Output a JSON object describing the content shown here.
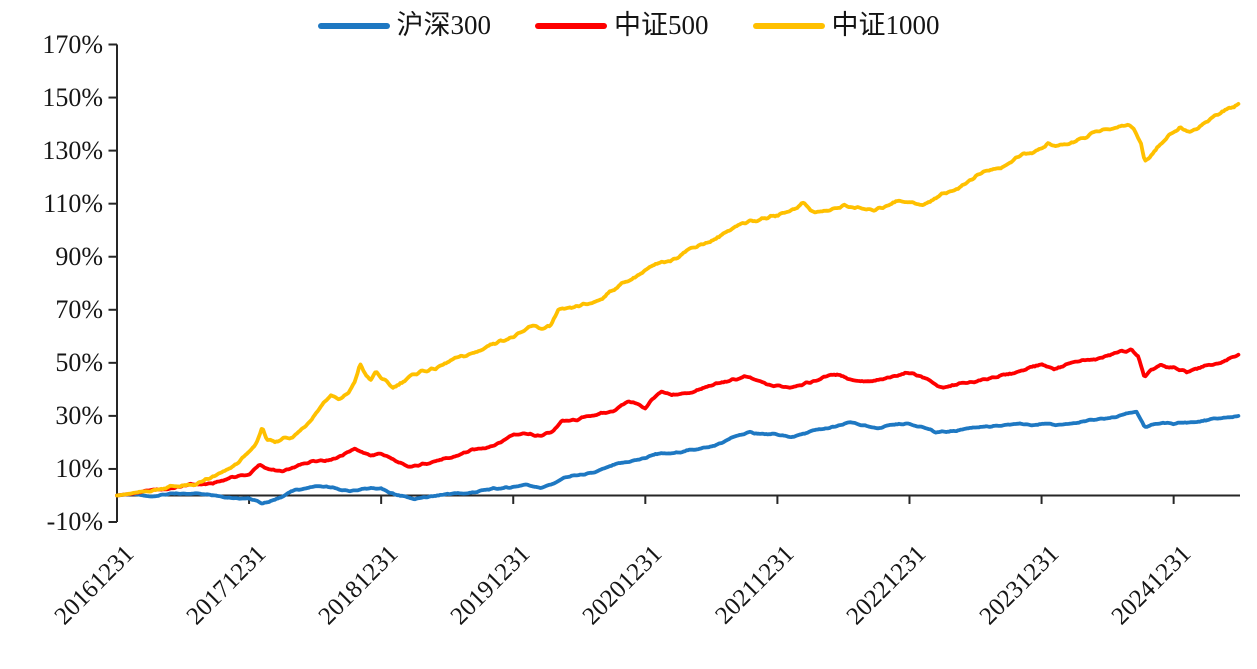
{
  "chart_data": {
    "type": "line",
    "title": "",
    "xlabel": "",
    "ylabel": "",
    "grid": false,
    "legend_position": "top-center",
    "axis_color": "#262626",
    "text_color": "#161616",
    "background": "#ffffff",
    "ylim": [
      -10,
      170
    ],
    "y_tick_labels": [
      "170%",
      "150%",
      "130%",
      "110%",
      "90%",
      "70%",
      "50%",
      "30%",
      "10%",
      "-10%"
    ],
    "y_tick_values": [
      170,
      150,
      130,
      110,
      90,
      70,
      50,
      30,
      10,
      -10
    ],
    "x_tick_labels": [
      "20161231",
      "20171231",
      "20181231",
      "20191231",
      "20201231",
      "20211231",
      "20221231",
      "20231231",
      "20241231"
    ],
    "x_tick_years": [
      0,
      1,
      2,
      3,
      4,
      5,
      6,
      7,
      8
    ],
    "x_range_years": [
      0,
      8.54
    ],
    "value_unit": "percent_cumulative_return",
    "legend": [
      {
        "name": "沪深300",
        "color": "#1E78C2"
      },
      {
        "name": "中证500",
        "color": "#FE0000"
      },
      {
        "name": "中证1000",
        "color": "#FFC000"
      }
    ],
    "series": [
      {
        "name": "沪深300",
        "color": "#1E78C2",
        "points": [
          [
            0,
            0
          ],
          [
            0.12,
            0.6
          ],
          [
            0.25,
            -0.3
          ],
          [
            0.4,
            0.4
          ],
          [
            0.55,
            1.0
          ],
          [
            0.7,
            0.3
          ],
          [
            0.85,
            -0.6
          ],
          [
            1.0,
            -1.4
          ],
          [
            1.1,
            -2.8
          ],
          [
            1.22,
            -1.2
          ],
          [
            1.35,
            2.0
          ],
          [
            1.5,
            3.6
          ],
          [
            1.62,
            2.8
          ],
          [
            1.75,
            1.8
          ],
          [
            1.88,
            2.4
          ],
          [
            2.0,
            2.6
          ],
          [
            2.1,
            0.6
          ],
          [
            2.25,
            -1.5
          ],
          [
            2.35,
            -0.4
          ],
          [
            2.5,
            0.4
          ],
          [
            2.65,
            1.0
          ],
          [
            2.8,
            2.0
          ],
          [
            3.0,
            3.4
          ],
          [
            3.1,
            4.0
          ],
          [
            3.2,
            2.8
          ],
          [
            3.3,
            4.5
          ],
          [
            3.38,
            6.5
          ],
          [
            3.5,
            7.7
          ],
          [
            3.6,
            8.6
          ],
          [
            3.7,
            10.2
          ],
          [
            3.8,
            12.0
          ],
          [
            3.9,
            13.2
          ],
          [
            4.0,
            14.0
          ],
          [
            4.08,
            15.6
          ],
          [
            4.2,
            16.0
          ],
          [
            4.35,
            17.0
          ],
          [
            4.5,
            18.6
          ],
          [
            4.6,
            20.2
          ],
          [
            4.7,
            22.6
          ],
          [
            4.8,
            24.0
          ],
          [
            4.9,
            23.0
          ],
          [
            5.0,
            22.8
          ],
          [
            5.1,
            22.2
          ],
          [
            5.2,
            23.2
          ],
          [
            5.3,
            24.6
          ],
          [
            5.45,
            26.2
          ],
          [
            5.55,
            27.4
          ],
          [
            5.65,
            26.4
          ],
          [
            5.75,
            25.4
          ],
          [
            5.85,
            26.4
          ],
          [
            6.0,
            27.2
          ],
          [
            6.1,
            25.8
          ],
          [
            6.2,
            23.6
          ],
          [
            6.35,
            24.6
          ],
          [
            6.5,
            25.6
          ],
          [
            6.65,
            26.2
          ],
          [
            6.8,
            26.8
          ],
          [
            7.0,
            27.0
          ],
          [
            7.1,
            26.4
          ],
          [
            7.25,
            27.4
          ],
          [
            7.4,
            28.4
          ],
          [
            7.55,
            29.6
          ],
          [
            7.65,
            31.0
          ],
          [
            7.72,
            31.4
          ],
          [
            7.78,
            25.6
          ],
          [
            7.85,
            27.0
          ],
          [
            7.95,
            27.4
          ],
          [
            8.0,
            26.8
          ],
          [
            8.1,
            27.6
          ],
          [
            8.2,
            28.0
          ],
          [
            8.35,
            29.0
          ],
          [
            8.49,
            30.2
          ]
        ]
      },
      {
        "name": "中证500",
        "color": "#FE0000",
        "points": [
          [
            0,
            0
          ],
          [
            0.12,
            0.8
          ],
          [
            0.25,
            1.8
          ],
          [
            0.4,
            2.8
          ],
          [
            0.55,
            3.8
          ],
          [
            0.7,
            4.6
          ],
          [
            0.8,
            5.6
          ],
          [
            0.9,
            7.0
          ],
          [
            1.0,
            8.2
          ],
          [
            1.08,
            11.6
          ],
          [
            1.16,
            9.4
          ],
          [
            1.25,
            9.0
          ],
          [
            1.35,
            11.0
          ],
          [
            1.5,
            13.0
          ],
          [
            1.6,
            13.6
          ],
          [
            1.7,
            15.0
          ],
          [
            1.8,
            17.6
          ],
          [
            1.86,
            16.0
          ],
          [
            1.94,
            15.4
          ],
          [
            2.0,
            15.9
          ],
          [
            2.1,
            13.0
          ],
          [
            2.2,
            10.9
          ],
          [
            2.3,
            11.6
          ],
          [
            2.4,
            12.6
          ],
          [
            2.5,
            14.0
          ],
          [
            2.6,
            15.6
          ],
          [
            2.75,
            17.6
          ],
          [
            2.9,
            20.0
          ],
          [
            3.0,
            22.8
          ],
          [
            3.1,
            23.6
          ],
          [
            3.2,
            22.4
          ],
          [
            3.3,
            24.0
          ],
          [
            3.37,
            28.0
          ],
          [
            3.45,
            28.5
          ],
          [
            3.55,
            29.5
          ],
          [
            3.65,
            30.5
          ],
          [
            3.75,
            32.0
          ],
          [
            3.87,
            35.4
          ],
          [
            3.95,
            34.0
          ],
          [
            4.0,
            33.0
          ],
          [
            4.06,
            37.0
          ],
          [
            4.12,
            39.0
          ],
          [
            4.2,
            37.5
          ],
          [
            4.3,
            38.5
          ],
          [
            4.45,
            40.6
          ],
          [
            4.55,
            42.0
          ],
          [
            4.65,
            43.6
          ],
          [
            4.75,
            44.8
          ],
          [
            4.85,
            43.0
          ],
          [
            4.95,
            41.6
          ],
          [
            5.0,
            41.6
          ],
          [
            5.1,
            40.6
          ],
          [
            5.2,
            42.0
          ],
          [
            5.35,
            44.6
          ],
          [
            5.45,
            45.6
          ],
          [
            5.55,
            44.0
          ],
          [
            5.7,
            42.6
          ],
          [
            5.8,
            43.6
          ],
          [
            5.9,
            45.6
          ],
          [
            6.0,
            46.2
          ],
          [
            6.08,
            44.8
          ],
          [
            6.16,
            43.4
          ],
          [
            6.25,
            40.4
          ],
          [
            6.35,
            41.6
          ],
          [
            6.45,
            42.6
          ],
          [
            6.55,
            43.6
          ],
          [
            6.7,
            45.0
          ],
          [
            6.8,
            46.6
          ],
          [
            6.9,
            48.0
          ],
          [
            7.0,
            49.2
          ],
          [
            7.1,
            48.0
          ],
          [
            7.2,
            49.6
          ],
          [
            7.35,
            51.0
          ],
          [
            7.5,
            52.6
          ],
          [
            7.6,
            54.0
          ],
          [
            7.68,
            54.9
          ],
          [
            7.73,
            53.0
          ],
          [
            7.78,
            44.4
          ],
          [
            7.83,
            47.0
          ],
          [
            7.9,
            49.0
          ],
          [
            7.95,
            48.0
          ],
          [
            8.0,
            48.5
          ],
          [
            8.1,
            46.6
          ],
          [
            8.2,
            48.0
          ],
          [
            8.3,
            49.6
          ],
          [
            8.4,
            51.0
          ],
          [
            8.49,
            52.6
          ]
        ]
      },
      {
        "name": "中证1000",
        "color": "#FFC000",
        "points": [
          [
            0,
            0
          ],
          [
            0.1,
            0.6
          ],
          [
            0.2,
            1.4
          ],
          [
            0.3,
            2.4
          ],
          [
            0.4,
            3.0
          ],
          [
            0.5,
            3.6
          ],
          [
            0.6,
            4.6
          ],
          [
            0.7,
            6.0
          ],
          [
            0.8,
            8.6
          ],
          [
            0.9,
            12.0
          ],
          [
            1.0,
            16.0
          ],
          [
            1.05,
            19.0
          ],
          [
            1.1,
            25.3
          ],
          [
            1.14,
            21.0
          ],
          [
            1.2,
            20.2
          ],
          [
            1.27,
            22.0
          ],
          [
            1.33,
            21.4
          ],
          [
            1.42,
            26.0
          ],
          [
            1.5,
            31.0
          ],
          [
            1.56,
            34.8
          ],
          [
            1.62,
            37.5
          ],
          [
            1.68,
            36.0
          ],
          [
            1.75,
            38.5
          ],
          [
            1.8,
            43.0
          ],
          [
            1.84,
            49.8
          ],
          [
            1.88,
            45.8
          ],
          [
            1.92,
            42.9
          ],
          [
            1.96,
            46.4
          ],
          [
            2.0,
            44.2
          ],
          [
            2.09,
            41.0
          ],
          [
            2.2,
            44.0
          ],
          [
            2.3,
            46.6
          ],
          [
            2.4,
            48.0
          ],
          [
            2.5,
            50.0
          ],
          [
            2.6,
            52.0
          ],
          [
            2.7,
            54.0
          ],
          [
            2.8,
            56.0
          ],
          [
            2.9,
            58.0
          ],
          [
            3.0,
            60.0
          ],
          [
            3.08,
            62.0
          ],
          [
            3.15,
            64.0
          ],
          [
            3.22,
            62.5
          ],
          [
            3.28,
            64.0
          ],
          [
            3.34,
            70.0
          ],
          [
            3.45,
            70.5
          ],
          [
            3.55,
            72.0
          ],
          [
            3.65,
            74.0
          ],
          [
            3.75,
            77.0
          ],
          [
            3.85,
            80.5
          ],
          [
            3.95,
            83.5
          ],
          [
            4.0,
            85.0
          ],
          [
            4.1,
            87.0
          ],
          [
            4.2,
            89.0
          ],
          [
            4.3,
            92.0
          ],
          [
            4.4,
            94.0
          ],
          [
            4.5,
            96.0
          ],
          [
            4.6,
            99.0
          ],
          [
            4.7,
            101.6
          ],
          [
            4.8,
            103.6
          ],
          [
            4.9,
            104.6
          ],
          [
            5.0,
            105.2
          ],
          [
            5.1,
            107.6
          ],
          [
            5.2,
            110.6
          ],
          [
            5.28,
            106.2
          ],
          [
            5.4,
            107.6
          ],
          [
            5.5,
            109.6
          ],
          [
            5.6,
            108.0
          ],
          [
            5.7,
            107.6
          ],
          [
            5.8,
            109.0
          ],
          [
            5.9,
            110.6
          ],
          [
            6.0,
            110.8
          ],
          [
            6.1,
            109.6
          ],
          [
            6.2,
            112.0
          ],
          [
            6.3,
            114.6
          ],
          [
            6.4,
            117.0
          ],
          [
            6.5,
            120.0
          ],
          [
            6.6,
            122.6
          ],
          [
            6.7,
            124.0
          ],
          [
            6.8,
            126.6
          ],
          [
            6.9,
            129.0
          ],
          [
            7.0,
            130.8
          ],
          [
            7.05,
            133.0
          ],
          [
            7.1,
            131.0
          ],
          [
            7.2,
            132.6
          ],
          [
            7.3,
            134.6
          ],
          [
            7.4,
            136.6
          ],
          [
            7.5,
            138.0
          ],
          [
            7.6,
            139.6
          ],
          [
            7.65,
            140.0
          ],
          [
            7.7,
            138.0
          ],
          [
            7.75,
            133.0
          ],
          [
            7.78,
            125.6
          ],
          [
            7.82,
            128.0
          ],
          [
            7.88,
            131.6
          ],
          [
            7.93,
            134.0
          ],
          [
            7.97,
            136.0
          ],
          [
            8.0,
            136.6
          ],
          [
            8.05,
            138.6
          ],
          [
            8.1,
            137.0
          ],
          [
            8.16,
            138.0
          ],
          [
            8.22,
            140.0
          ],
          [
            8.3,
            142.6
          ],
          [
            8.4,
            145.0
          ],
          [
            8.45,
            146.4
          ],
          [
            8.49,
            147.8
          ]
        ]
      }
    ]
  }
}
